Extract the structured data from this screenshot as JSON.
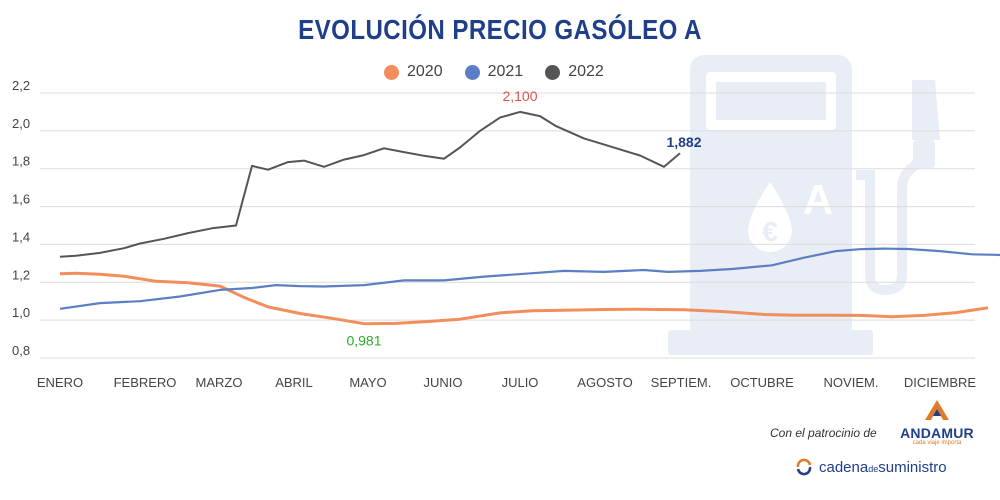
{
  "title": "EVOLUCIÓN PRECIO GASÓLEO A",
  "legend": [
    {
      "name": "2020",
      "color": "#f28e5b"
    },
    {
      "name": "2021",
      "color": "#5b7ec4"
    },
    {
      "name": "2022",
      "color": "#555555"
    }
  ],
  "chart_data": {
    "type": "line",
    "title": "EVOLUCIÓN PRECIO GASÓLEO A",
    "xlabel": "",
    "ylabel": "",
    "ylim": [
      0.8,
      2.2
    ],
    "yticks": [
      "0,8",
      "1,0",
      "1,2",
      "1,4",
      "1,6",
      "1,8",
      "2,0",
      "2,2"
    ],
    "ytick_values": [
      0.8,
      1.0,
      1.2,
      1.4,
      1.6,
      1.8,
      2.0,
      2.2
    ],
    "categories": [
      "ENERO",
      "FEBRERO",
      "MARZO",
      "ABRIL",
      "MAYO",
      "JUNIO",
      "JULIO",
      "AGOSTO",
      "SEPTIEM.",
      "OCTUBRE",
      "NOVIEM.",
      "DICIEMBRE"
    ],
    "grid": "horizontal",
    "legend_position": "top",
    "series": [
      {
        "name": "2020",
        "color": "#f28e5b",
        "x": [
          0.0,
          0.2,
          0.5,
          0.8,
          1.2,
          1.6,
          2.0,
          2.3,
          2.6,
          3.0,
          3.4,
          3.8,
          4.2,
          4.6,
          5.0,
          5.5,
          5.9,
          6.3,
          6.8,
          7.2,
          7.8,
          8.3,
          8.8,
          9.2,
          9.6,
          10.0,
          10.4,
          10.8,
          11.2,
          11.6
        ],
        "values": [
          1.245,
          1.248,
          1.242,
          1.232,
          1.205,
          1.198,
          1.18,
          1.12,
          1.07,
          1.035,
          1.01,
          0.981,
          0.983,
          0.993,
          1.005,
          1.038,
          1.05,
          1.052,
          1.056,
          1.058,
          1.055,
          1.045,
          1.03,
          1.026,
          1.026,
          1.025,
          1.018,
          1.025,
          1.04,
          1.065
        ]
      },
      {
        "name": "2021",
        "color": "#5b7ec4",
        "x": [
          0.0,
          0.5,
          1.0,
          1.5,
          2.0,
          2.4,
          2.7,
          3.0,
          3.3,
          3.8,
          4.3,
          4.8,
          5.3,
          5.8,
          6.3,
          6.8,
          7.3,
          7.6,
          8.0,
          8.4,
          8.9,
          9.3,
          9.7,
          10.0,
          10.3,
          10.6,
          11.0,
          11.4,
          11.7,
          12.0
        ],
        "values": [
          1.06,
          1.09,
          1.1,
          1.125,
          1.16,
          1.17,
          1.185,
          1.18,
          1.178,
          1.185,
          1.21,
          1.21,
          1.23,
          1.245,
          1.26,
          1.255,
          1.265,
          1.255,
          1.26,
          1.27,
          1.29,
          1.33,
          1.365,
          1.375,
          1.378,
          1.376,
          1.365,
          1.348,
          1.345,
          1.338
        ]
      },
      {
        "name": "2022",
        "color": "#555555",
        "x": [
          0.0,
          0.2,
          0.5,
          0.8,
          1.0,
          1.3,
          1.6,
          1.9,
          2.2,
          2.4,
          2.6,
          2.85,
          3.05,
          3.3,
          3.55,
          3.8,
          4.05,
          4.3,
          4.55,
          4.8,
          5.0,
          5.25,
          5.5,
          5.75,
          6.0,
          6.2,
          6.55,
          6.9,
          7.25,
          7.55,
          7.75
        ],
        "values": [
          1.335,
          1.34,
          1.355,
          1.38,
          1.405,
          1.43,
          1.46,
          1.485,
          1.5,
          1.815,
          1.795,
          1.835,
          1.843,
          1.81,
          1.848,
          1.872,
          1.908,
          1.888,
          1.868,
          1.853,
          1.912,
          2.0,
          2.07,
          2.1,
          2.078,
          2.025,
          1.96,
          1.915,
          1.87,
          1.81,
          1.882
        ]
      }
    ],
    "annotations": [
      {
        "text": "2,100",
        "series": "2022",
        "x": 5.75,
        "y": 2.1,
        "color": "#d9534f"
      },
      {
        "text": "1,882",
        "series": "2022",
        "x": 7.75,
        "y": 1.882,
        "color": "#1f3f8a"
      },
      {
        "text": "0,981",
        "series": "2020",
        "x": 3.8,
        "y": 0.981,
        "color": "#2eaa2e"
      }
    ]
  },
  "footer": {
    "sponsor_text": "Con el patrocinio de",
    "sponsor_brand": "ANDAMUR",
    "sponsor_tagline": "cada viaje importa",
    "publisher_part1": "cadena",
    "publisher_part2": "de",
    "publisher_part3": "suministro"
  },
  "colors": {
    "title": "#1f3f8a",
    "pump_watermark": "#e8edf6",
    "grid": "#dcdcdc"
  },
  "icons": [
    "fuel-pump-watermark",
    "euro-drop-icon",
    "andamur-logo",
    "cadena-suministro-logo"
  ]
}
